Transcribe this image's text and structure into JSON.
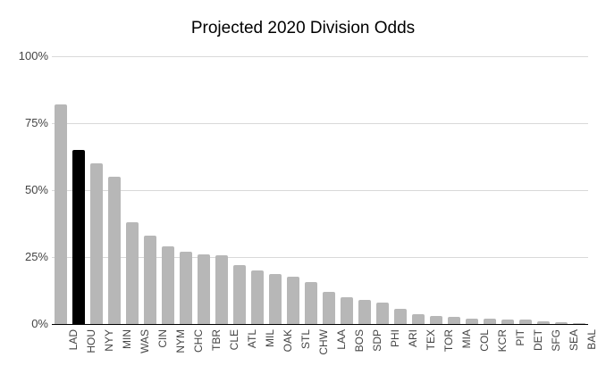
{
  "chart_data": {
    "type": "bar",
    "title": "Projected 2020 Division Odds",
    "xlabel": "",
    "ylabel": "",
    "ylim": [
      0,
      100
    ],
    "grid": true,
    "legend": false,
    "y_ticks": [
      {
        "value": 0,
        "label": "0%"
      },
      {
        "value": 25,
        "label": "25%"
      },
      {
        "value": 50,
        "label": "50%"
      },
      {
        "value": 75,
        "label": "75%"
      },
      {
        "value": 100,
        "label": "100%"
      }
    ],
    "categories": [
      "LAD",
      "HOU",
      "NYY",
      "MIN",
      "WAS",
      "CIN",
      "NYM",
      "CHC",
      "TBR",
      "CLE",
      "ATL",
      "MIL",
      "OAK",
      "STL",
      "CHW",
      "LAA",
      "BOS",
      "SDP",
      "PHI",
      "ARI",
      "TEX",
      "TOR",
      "MIA",
      "COL",
      "KCR",
      "PIT",
      "DET",
      "SFG",
      "SEA",
      "BAL"
    ],
    "values": [
      82,
      65,
      60,
      55,
      38,
      33,
      29,
      27,
      26,
      25.5,
      22,
      20,
      18.5,
      17.5,
      15.5,
      12,
      10,
      9,
      8,
      5.5,
      3.5,
      3,
      2.5,
      2,
      2,
      1.8,
      1.5,
      1,
      0.5,
      0.1
    ],
    "highlight_category": "HOU",
    "colors": {
      "bar_default": "#b7b7b7",
      "bar_highlight": "#000000",
      "gridline": "#d9d9d9",
      "axis_line": "#000000",
      "title_text": "#000000",
      "tick_text": "#444444",
      "background": "#ffffff"
    }
  }
}
